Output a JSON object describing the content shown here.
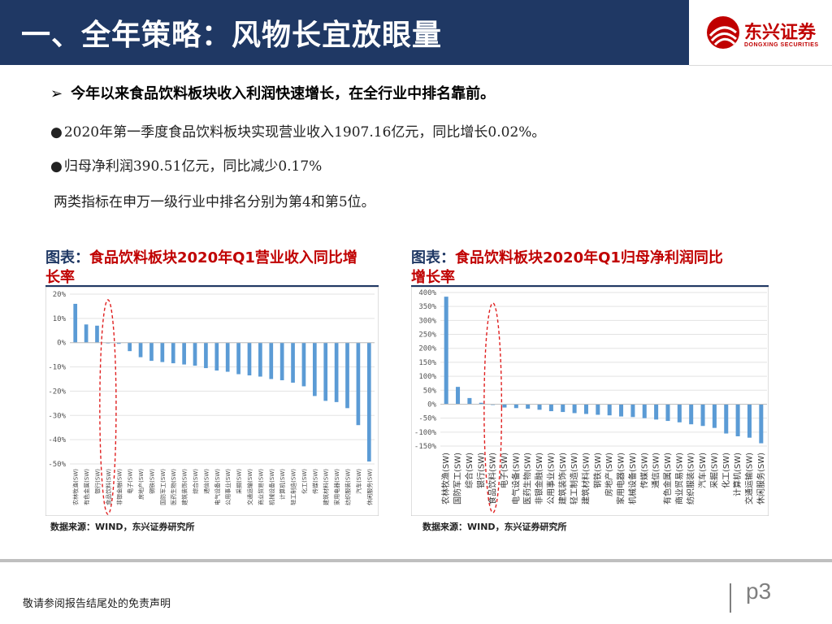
{
  "header": {
    "title": "一、全年策略：风物长宜放眼量",
    "logo_text": "东兴证券",
    "logo_subtext": "DONGXING SECURITIES",
    "brand_color": "#1f3864",
    "accent_color": "#c00000"
  },
  "bullet": {
    "arrow": "➢",
    "text": "今年以来食品饮料板块收入利润快速增长，在全行业中排名靠前。"
  },
  "points": [
    {
      "dot": "●",
      "text": "2020年第一季度食品饮料板块实现营业收入1907.16亿元，同比增长0.02%。"
    },
    {
      "dot": "●",
      "text": "归母净利润390.51亿元，同比减少0.17%"
    },
    {
      "dot": "",
      "text": "两类指标在申万一级行业中排名分别为第4和第5位。"
    }
  ],
  "charts": {
    "left": {
      "title_prefix": "图表：",
      "title_text": "食品饮料板块2020年Q1营业收入同比增长率",
      "source": "数据来源：WIND，东兴证券研究所"
    },
    "right": {
      "title_prefix": "图表：",
      "title_text": "食品饮料板块2020年Q1归母净利润同比增长率",
      "source": "数据来源：WIND，东兴证券研究所"
    }
  },
  "chart_data": [
    {
      "type": "bar",
      "title": "食品饮料板块2020年Q1营业收入同比增长率",
      "unit": "%",
      "ylim": [
        -50,
        20
      ],
      "yticks": [
        "20%",
        "10%",
        "0%",
        "-10%",
        "-20%",
        "-30%",
        "-40%",
        "-50%"
      ],
      "categories": [
        "农林牧渔(SW)",
        "有色金属(SW)",
        "银行(SW)",
        "食品饮料(SW)",
        "非银金融(SW)",
        "电子(SW)",
        "房地产(SW)",
        "钢铁(SW)",
        "国防军工(SW)",
        "医药生物(SW)",
        "建筑装饰(SW)",
        "综合(SW)",
        "通信(SW)",
        "电气设备(SW)",
        "公用事业(SW)",
        "采掘(SW)",
        "交通运输(SW)",
        "商业贸易(SW)",
        "机械设备(SW)",
        "计算机(SW)",
        "轻工制造(SW)",
        "化工(SW)",
        "传媒(SW)",
        "建筑材料(SW)",
        "家用电器(SW)",
        "纺织服装(SW)",
        "汽车(SW)",
        "休闲服务(SW)"
      ],
      "values": [
        16,
        7.5,
        7,
        0.02,
        -0.5,
        -3.5,
        -6,
        -7.5,
        -8,
        -8.5,
        -9,
        -9.5,
        -10.5,
        -11.5,
        -12,
        -13,
        -13.5,
        -14,
        -15,
        -15.5,
        -16.5,
        -18,
        -22,
        -24,
        -24.5,
        -27,
        -34,
        -49
      ],
      "highlight": "食品饮料(SW)",
      "bar_color": "#5b9bd5"
    },
    {
      "type": "bar",
      "title": "食品饮料板块2020年Q1归母净利润同比增长率",
      "unit": "%",
      "ylim": [
        -150,
        400
      ],
      "yticks": [
        "400%",
        "350%",
        "300%",
        "250%",
        "200%",
        "150%",
        "100%",
        "50%",
        "0%",
        "-50%",
        "-100%",
        "-150%"
      ],
      "categories": [
        "农林牧渔(SW)",
        "国防军工(SW)",
        "综合(SW)",
        "银行(SW)",
        "食品饮料(SW)",
        "电子(SW)",
        "电气设备(SW)",
        "医药生物(SW)",
        "非银金融(SW)",
        "公用事业(SW)",
        "建筑装饰(SW)",
        "轻工制造(SW)",
        "建筑材料(SW)",
        "钢铁(SW)",
        "房地产(SW)",
        "家用电器(SW)",
        "机械设备(SW)",
        "传媒(SW)",
        "通信(SW)",
        "有色金属(SW)",
        "商业贸易(SW)",
        "纺织服装(SW)",
        "汽车(SW)",
        "采掘(SW)",
        "化工(SW)",
        "计算机(SW)",
        "交通运输(SW)",
        "休闲服务(SW)"
      ],
      "values": [
        385,
        62,
        22,
        5,
        -0.17,
        -12,
        -14,
        -16,
        -20,
        -25,
        -28,
        -32,
        -35,
        -38,
        -40,
        -44,
        -46,
        -50,
        -55,
        -60,
        -65,
        -72,
        -78,
        -85,
        -105,
        -115,
        -120,
        -140
      ],
      "highlight": "食品饮料(SW)",
      "bar_color": "#5b9bd5"
    }
  ],
  "footer": {
    "disclaimer": "敬请参阅报告结尾处的免责声明",
    "page": "p3"
  }
}
